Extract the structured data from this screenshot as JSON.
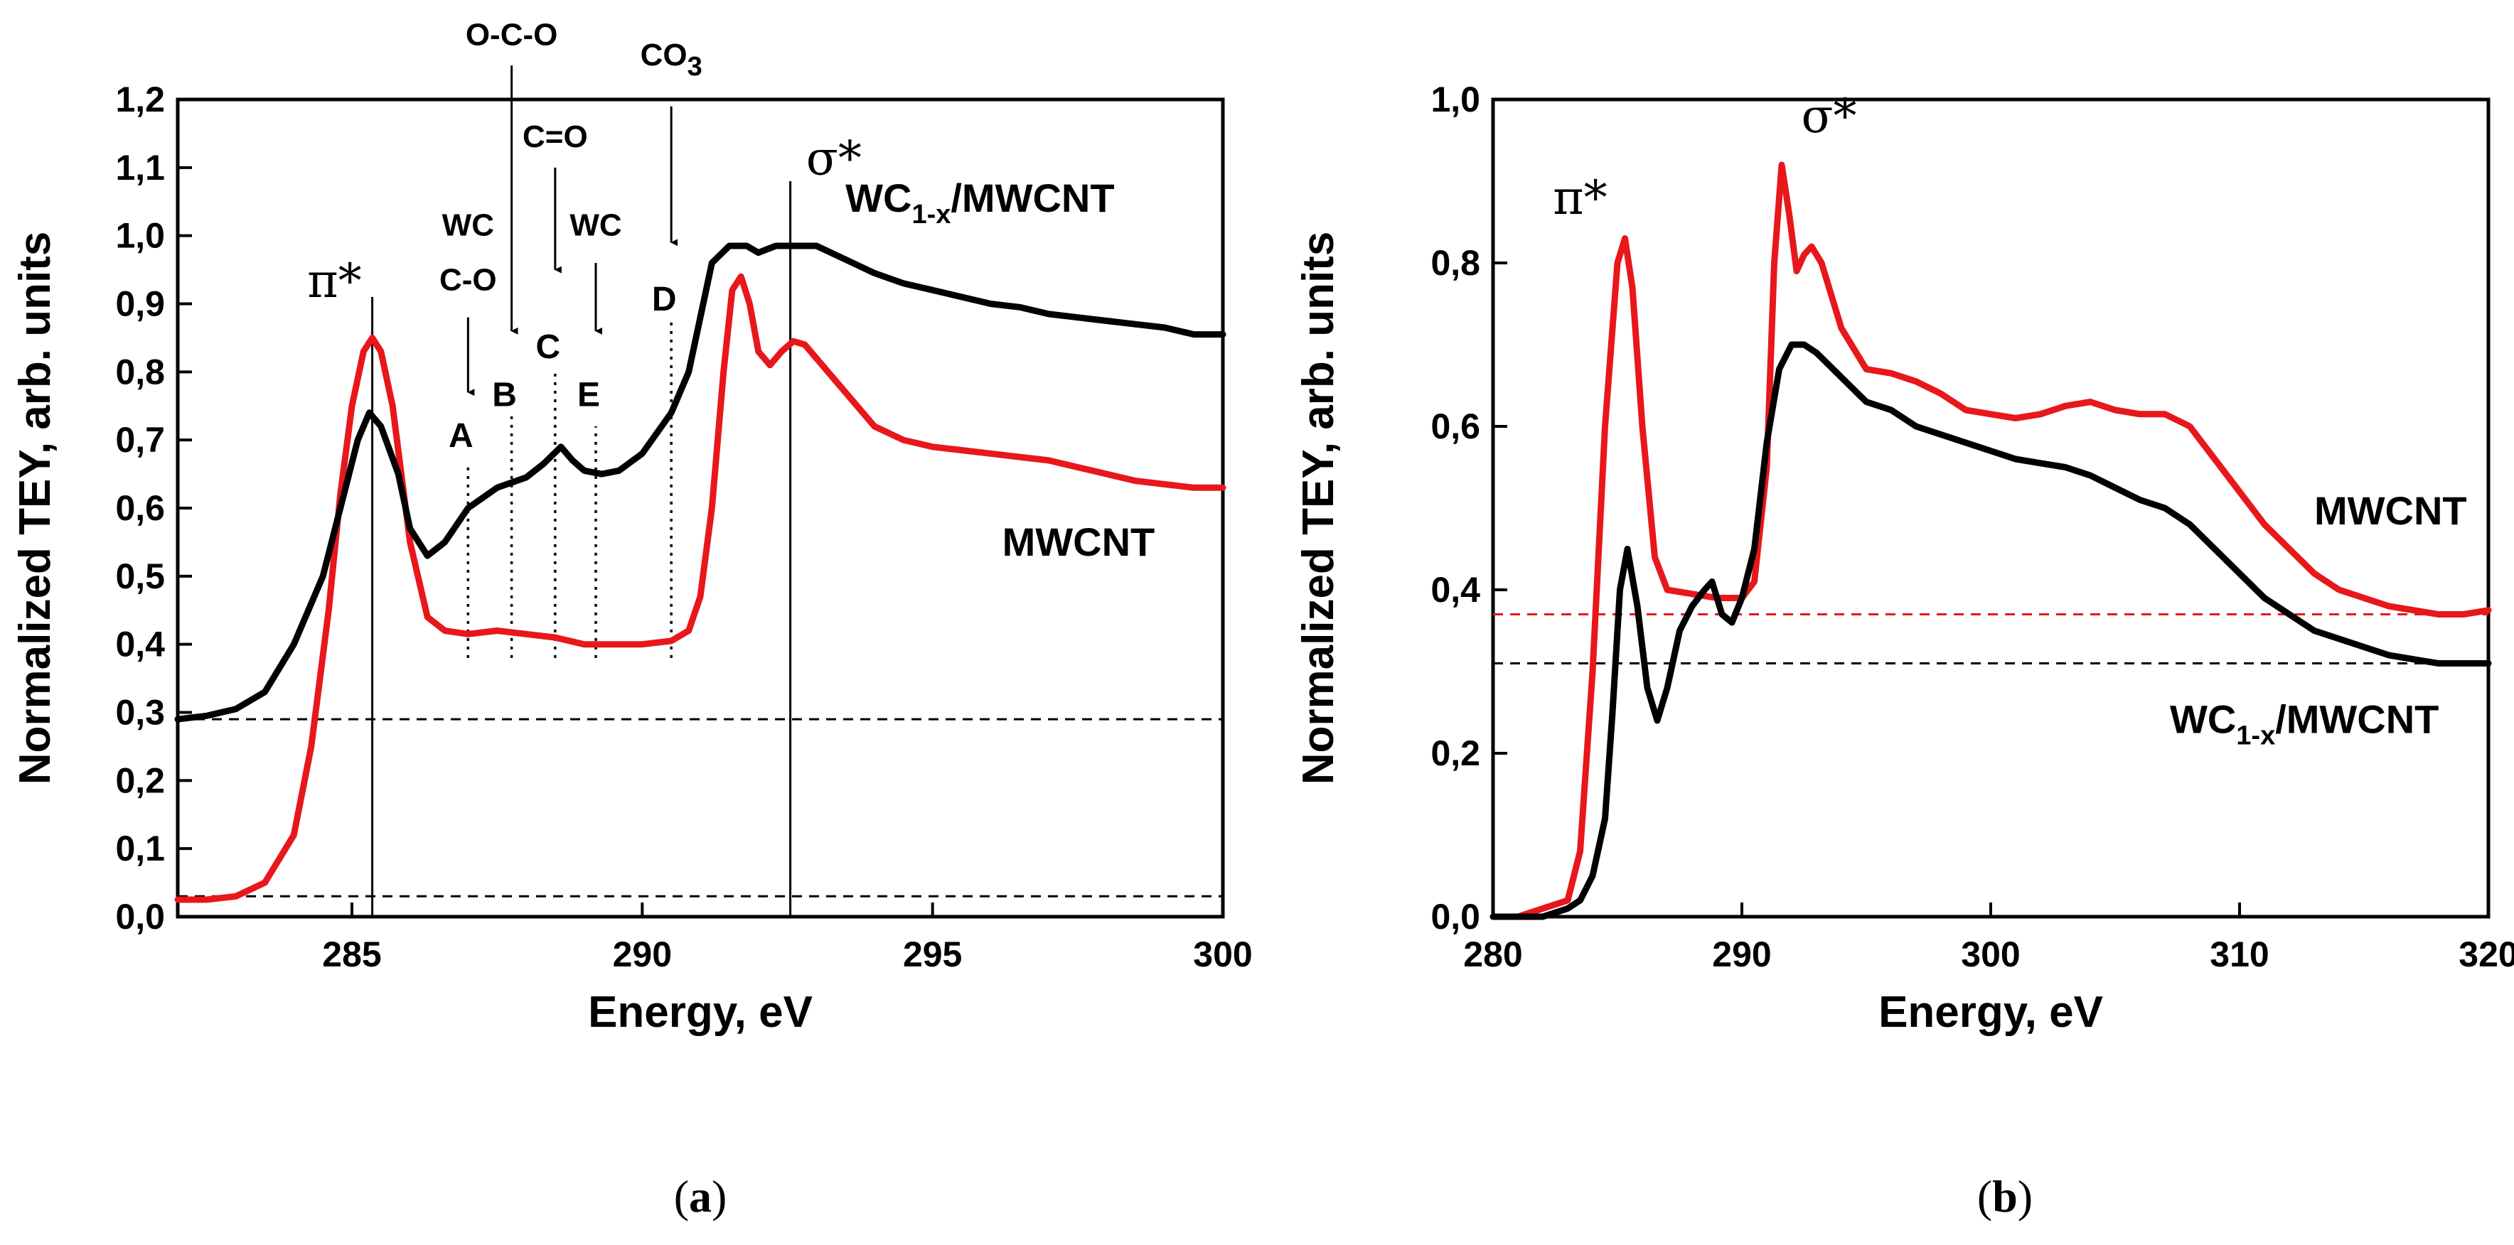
{
  "chart_data": [
    {
      "id": "a",
      "type": "line",
      "panel_label": "a",
      "title": "",
      "xlabel": "Energy, eV",
      "ylabel": "Normalized TEY, arb. units",
      "xlim": [
        282,
        300
      ],
      "ylim": [
        0.0,
        1.2
      ],
      "xticks": [
        285,
        290,
        295,
        300
      ],
      "xtick_labels": [
        "285",
        "290",
        "295",
        "300"
      ],
      "yticks": [
        0.0,
        0.1,
        0.2,
        0.3,
        0.4,
        0.5,
        0.6,
        0.7,
        0.8,
        0.9,
        1.0,
        1.1,
        1.2
      ],
      "ytick_labels": [
        "0,0",
        "0,1",
        "0,2",
        "0,3",
        "0,4",
        "0,5",
        "0,6",
        "0,7",
        "0,8",
        "0,9",
        "1,0",
        "1,1",
        "1,2"
      ],
      "series": [
        {
          "name": "MWCNT",
          "label_main": "MWCNT",
          "label_sub": "",
          "label_tail": "",
          "label_x": 296.2,
          "label_y": 0.53,
          "color": "#e8171b",
          "x": [
            282.0,
            282.5,
            283.0,
            283.5,
            284.0,
            284.3,
            284.6,
            284.8,
            285.0,
            285.2,
            285.35,
            285.5,
            285.7,
            286.0,
            286.3,
            286.6,
            287.0,
            287.5,
            288.0,
            288.5,
            289.0,
            289.5,
            290.0,
            290.5,
            290.8,
            291.0,
            291.2,
            291.4,
            291.55,
            291.7,
            291.85,
            292.0,
            292.2,
            292.4,
            292.6,
            292.8,
            293.0,
            293.3,
            293.7,
            294.0,
            294.5,
            295.0,
            295.5,
            296.0,
            296.5,
            297.0,
            297.5,
            298.0,
            298.5,
            299.0,
            299.5,
            300.0
          ],
          "y": [
            0.025,
            0.025,
            0.03,
            0.05,
            0.12,
            0.25,
            0.45,
            0.62,
            0.75,
            0.83,
            0.85,
            0.83,
            0.75,
            0.55,
            0.44,
            0.42,
            0.415,
            0.42,
            0.415,
            0.41,
            0.4,
            0.4,
            0.4,
            0.405,
            0.42,
            0.47,
            0.6,
            0.8,
            0.92,
            0.94,
            0.9,
            0.83,
            0.81,
            0.83,
            0.845,
            0.84,
            0.82,
            0.79,
            0.75,
            0.72,
            0.7,
            0.69,
            0.685,
            0.68,
            0.675,
            0.67,
            0.66,
            0.65,
            0.64,
            0.635,
            0.63,
            0.63
          ]
        },
        {
          "name": "WC1-x/MWCNT",
          "label_main": "WC",
          "label_sub": "1-x",
          "label_tail": "/MWCNT",
          "label_x": 293.5,
          "label_y": 1.035,
          "color": "#000000",
          "x": [
            282.0,
            282.5,
            283.0,
            283.5,
            284.0,
            284.5,
            284.8,
            285.1,
            285.3,
            285.5,
            285.8,
            286.0,
            286.3,
            286.6,
            287.0,
            287.5,
            288.0,
            288.3,
            288.6,
            288.8,
            289.0,
            289.3,
            289.6,
            290.0,
            290.5,
            290.8,
            291.0,
            291.2,
            291.5,
            291.8,
            292.0,
            292.3,
            292.6,
            293.0,
            293.5,
            294.0,
            294.5,
            295.0,
            295.5,
            296.0,
            296.5,
            297.0,
            297.5,
            298.0,
            298.5,
            299.0,
            299.5,
            300.0
          ],
          "y": [
            0.29,
            0.295,
            0.305,
            0.33,
            0.4,
            0.5,
            0.6,
            0.7,
            0.74,
            0.72,
            0.65,
            0.57,
            0.53,
            0.55,
            0.6,
            0.63,
            0.645,
            0.665,
            0.69,
            0.67,
            0.655,
            0.65,
            0.655,
            0.68,
            0.74,
            0.8,
            0.88,
            0.96,
            0.985,
            0.985,
            0.975,
            0.985,
            0.985,
            0.985,
            0.965,
            0.945,
            0.93,
            0.92,
            0.91,
            0.9,
            0.895,
            0.885,
            0.88,
            0.875,
            0.87,
            0.865,
            0.855,
            0.855
          ]
        }
      ],
      "reference_lines": [
        {
          "type": "h",
          "value": 0.29,
          "style": "dashed",
          "color": "#000000"
        },
        {
          "type": "h",
          "value": 0.03,
          "style": "dashed",
          "color": "#000000"
        },
        {
          "type": "v",
          "value": 285.35,
          "y0": 0.0,
          "y1": 0.91,
          "style": "solid",
          "color": "#000000"
        },
        {
          "type": "v",
          "value": 292.55,
          "y0": 0.0,
          "y1": 1.08,
          "style": "solid",
          "color": "#000000"
        },
        {
          "type": "v",
          "value": 287.0,
          "y0": 0.38,
          "y1": 0.66,
          "style": "dotted",
          "color": "#000000"
        },
        {
          "type": "v",
          "value": 287.75,
          "y0": 0.38,
          "y1": 0.74,
          "style": "dotted",
          "color": "#000000"
        },
        {
          "type": "v",
          "value": 288.5,
          "y0": 0.38,
          "y1": 0.8,
          "style": "dotted",
          "color": "#000000"
        },
        {
          "type": "v",
          "value": 289.2,
          "y0": 0.38,
          "y1": 0.72,
          "style": "dotted",
          "color": "#000000"
        },
        {
          "type": "v",
          "value": 290.5,
          "y0": 0.38,
          "y1": 0.88,
          "style": "dotted",
          "color": "#000000"
        }
      ],
      "peak_labels": [
        {
          "text": "π*",
          "x": 284.7,
          "y": 0.91
        },
        {
          "text": "σ*",
          "x": 293.3,
          "y": 1.09
        }
      ],
      "arrow_annotations": [
        {
          "id": "A",
          "letter": "A",
          "labels": [
            "WC",
            "C-O"
          ],
          "x": 287.0,
          "label_y": [
            1.0,
            0.92
          ],
          "arrow_y": [
            0.88,
            0.77
          ],
          "letter_y": 0.69
        },
        {
          "id": "B",
          "letter": "B",
          "labels": [
            "O-C-O"
          ],
          "x": 287.75,
          "label_y": [
            1.28
          ],
          "arrow_y": [
            1.25,
            0.86
          ],
          "letter_y": 0.75
        },
        {
          "id": "C",
          "letter": "C",
          "labels": [
            "C=O"
          ],
          "x": 288.5,
          "label_y": [
            1.13
          ],
          "arrow_y": [
            1.1,
            0.95
          ],
          "letter_y": 0.82
        },
        {
          "id": "E",
          "letter": "E",
          "labels": [
            "WC"
          ],
          "x": 289.2,
          "label_y": [
            1.0
          ],
          "arrow_y": [
            0.96,
            0.86
          ],
          "letter_y": 0.75
        },
        {
          "id": "D",
          "letter": "D",
          "labels": [
            "CO",
            "3"
          ],
          "x": 290.5,
          "label_y": [
            1.25
          ],
          "arrow_y": [
            1.19,
            0.99
          ],
          "letter_y": 0.89
        }
      ]
    },
    {
      "id": "b",
      "type": "line",
      "panel_label": "b",
      "title": "",
      "xlabel": "Energy, eV",
      "ylabel": "Normalized TEY, arb. units",
      "xlim": [
        280,
        320
      ],
      "ylim": [
        0.0,
        1.0
      ],
      "xticks": [
        280,
        290,
        300,
        310,
        320
      ],
      "xtick_labels": [
        "280",
        "290",
        "300",
        "310",
        "320"
      ],
      "yticks": [
        0.0,
        0.2,
        0.4,
        0.6,
        0.8,
        1.0
      ],
      "ytick_labels": [
        "0,0",
        "0,2",
        "0,4",
        "0,6",
        "0,8",
        "1,0"
      ],
      "series": [
        {
          "name": "MWCNT",
          "label_main": "MWCNT",
          "label_sub": "",
          "label_tail": "",
          "label_x": 313.0,
          "label_y": 0.48,
          "color": "#e8171b",
          "x": [
            280,
            281,
            282,
            283,
            283.5,
            284,
            284.5,
            285.0,
            285.3,
            285.6,
            286.0,
            286.5,
            287,
            288,
            289,
            290,
            290.5,
            291.0,
            291.3,
            291.6,
            291.9,
            292.2,
            292.5,
            292.8,
            293.2,
            293.6,
            294,
            295,
            296,
            297,
            298,
            299,
            300,
            301,
            302,
            303,
            304,
            305,
            306,
            307,
            308,
            309,
            310,
            311,
            312,
            313,
            314,
            315,
            316,
            317,
            318,
            319,
            320
          ],
          "y": [
            0.0,
            0.0,
            0.01,
            0.02,
            0.08,
            0.3,
            0.6,
            0.8,
            0.83,
            0.77,
            0.6,
            0.44,
            0.4,
            0.395,
            0.39,
            0.39,
            0.41,
            0.55,
            0.8,
            0.92,
            0.86,
            0.79,
            0.81,
            0.82,
            0.8,
            0.76,
            0.72,
            0.67,
            0.665,
            0.655,
            0.64,
            0.62,
            0.615,
            0.61,
            0.615,
            0.625,
            0.63,
            0.62,
            0.615,
            0.615,
            0.6,
            0.56,
            0.52,
            0.48,
            0.45,
            0.42,
            0.4,
            0.39,
            0.38,
            0.375,
            0.37,
            0.37,
            0.375
          ]
        },
        {
          "name": "WC1-x/MWCNT",
          "label_main": "WC",
          "label_sub": "1-x",
          "label_tail": "/MWCNT",
          "label_x": 307.2,
          "label_y": 0.225,
          "color": "#000000",
          "x": [
            280,
            281,
            282,
            283,
            283.5,
            284,
            284.5,
            284.8,
            285.1,
            285.4,
            285.8,
            286.2,
            286.6,
            287,
            287.5,
            288,
            288.5,
            288.8,
            289.2,
            289.6,
            290,
            290.5,
            291,
            291.5,
            292,
            292.5,
            293,
            294,
            295,
            296,
            297,
            298,
            299,
            300,
            301,
            302,
            303,
            304,
            305,
            306,
            307,
            308,
            309,
            310,
            311,
            312,
            313,
            314,
            315,
            316,
            317,
            318,
            319,
            320
          ],
          "y": [
            0.0,
            0.0,
            0.0,
            0.01,
            0.02,
            0.05,
            0.12,
            0.25,
            0.4,
            0.45,
            0.38,
            0.28,
            0.24,
            0.28,
            0.35,
            0.38,
            0.4,
            0.41,
            0.37,
            0.36,
            0.39,
            0.45,
            0.58,
            0.67,
            0.7,
            0.7,
            0.69,
            0.66,
            0.63,
            0.62,
            0.6,
            0.59,
            0.58,
            0.57,
            0.56,
            0.555,
            0.55,
            0.54,
            0.525,
            0.51,
            0.5,
            0.48,
            0.45,
            0.42,
            0.39,
            0.37,
            0.35,
            0.34,
            0.33,
            0.32,
            0.315,
            0.31,
            0.31,
            0.31
          ]
        }
      ],
      "reference_lines": [
        {
          "type": "h",
          "value": 0.37,
          "style": "dashed",
          "color": "#e8171b"
        },
        {
          "type": "h",
          "value": 0.31,
          "style": "dashed",
          "color": "#000000"
        }
      ],
      "peak_labels": [
        {
          "text": "π*",
          "x": 283.5,
          "y": 0.86
        },
        {
          "text": "σ*",
          "x": 293.5,
          "y": 0.96
        }
      ],
      "arrow_annotations": []
    }
  ]
}
